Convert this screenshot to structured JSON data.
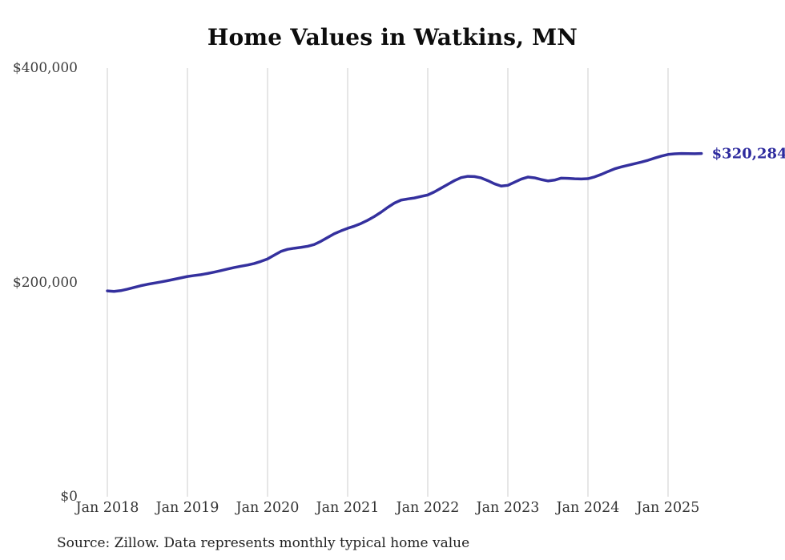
{
  "chart": {
    "title": "Home Values in Watkins, MN",
    "end_label": "$320,284",
    "source_note": "Source: Zillow. Data represents monthly typical home value",
    "line_color": "#34309e",
    "grid_color": "#cccccc",
    "y_ticks": [
      {
        "value": 0,
        "label": "$0"
      },
      {
        "value": 200000,
        "label": "$200,000"
      },
      {
        "value": 400000,
        "label": "$400,000"
      }
    ],
    "x_ticks": [
      {
        "month_index": 0,
        "label": "Jan 2018"
      },
      {
        "month_index": 12,
        "label": "Jan 2019"
      },
      {
        "month_index": 24,
        "label": "Jan 2020"
      },
      {
        "month_index": 36,
        "label": "Jan 2021"
      },
      {
        "month_index": 48,
        "label": "Jan 2022"
      },
      {
        "month_index": 60,
        "label": "Jan 2023"
      },
      {
        "month_index": 72,
        "label": "Jan 2024"
      },
      {
        "month_index": 84,
        "label": "Jan 2025"
      }
    ]
  },
  "chart_data": {
    "type": "line",
    "title": "Home Values in Watkins, MN",
    "xlabel": "",
    "ylabel": "",
    "unit": "USD",
    "frequency": "monthly",
    "ylim": [
      0,
      400000
    ],
    "grid": "vertical-only",
    "legend": "none",
    "final_value": 320284,
    "annotations": [
      {
        "text": "$320,284",
        "position": "line-end"
      }
    ],
    "x": [
      "2018-01",
      "2018-02",
      "2018-03",
      "2018-04",
      "2018-05",
      "2018-06",
      "2018-07",
      "2018-08",
      "2018-09",
      "2018-10",
      "2018-11",
      "2018-12",
      "2019-01",
      "2019-02",
      "2019-03",
      "2019-04",
      "2019-05",
      "2019-06",
      "2019-07",
      "2019-08",
      "2019-09",
      "2019-10",
      "2019-11",
      "2019-12",
      "2020-01",
      "2020-02",
      "2020-03",
      "2020-04",
      "2020-05",
      "2020-06",
      "2020-07",
      "2020-08",
      "2020-09",
      "2020-10",
      "2020-11",
      "2020-12",
      "2021-01",
      "2021-02",
      "2021-03",
      "2021-04",
      "2021-05",
      "2021-06",
      "2021-07",
      "2021-08",
      "2021-09",
      "2021-10",
      "2021-11",
      "2021-12",
      "2022-01",
      "2022-02",
      "2022-03",
      "2022-04",
      "2022-05",
      "2022-06",
      "2022-07",
      "2022-08",
      "2022-09",
      "2022-10",
      "2022-11",
      "2022-12",
      "2023-01",
      "2023-02",
      "2023-03",
      "2023-04",
      "2023-05",
      "2023-06",
      "2023-07",
      "2023-08",
      "2023-09",
      "2023-10",
      "2023-11",
      "2023-12",
      "2024-01",
      "2024-02",
      "2024-03",
      "2024-04",
      "2024-05",
      "2024-06",
      "2024-07",
      "2024-08",
      "2024-09",
      "2024-10",
      "2024-11",
      "2024-12",
      "2025-01",
      "2025-02",
      "2025-03",
      "2025-04",
      "2025-05",
      "2025-06"
    ],
    "values": [
      192100,
      191600,
      192300,
      193700,
      195300,
      196900,
      198200,
      199300,
      200400,
      201600,
      202900,
      204200,
      205500,
      206400,
      207200,
      208300,
      209600,
      211000,
      212500,
      213900,
      215100,
      216200,
      217600,
      219600,
      221900,
      225400,
      228900,
      230900,
      231900,
      232700,
      233700,
      235400,
      238400,
      241900,
      245400,
      248100,
      250500,
      252500,
      255000,
      258000,
      261500,
      265500,
      270000,
      274000,
      276800,
      277900,
      278800,
      280200,
      281600,
      284500,
      288000,
      291500,
      295000,
      297800,
      299000,
      298800,
      297500,
      295000,
      292000,
      289900,
      290600,
      293500,
      296400,
      298300,
      297600,
      296000,
      294700,
      295500,
      297300,
      297100,
      296700,
      296500,
      296800,
      298500,
      300800,
      303500,
      306000,
      307800,
      309300,
      310800,
      312300,
      314000,
      316000,
      317900,
      319400,
      320000,
      320300,
      320200,
      320100,
      320284
    ]
  }
}
